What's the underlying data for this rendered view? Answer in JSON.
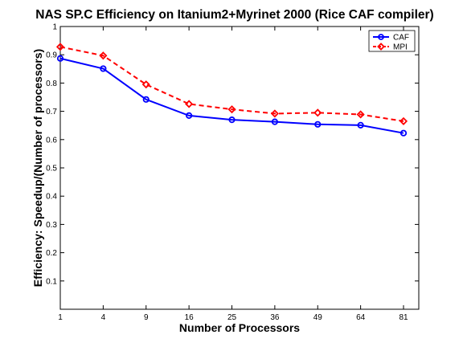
{
  "chart_data": {
    "type": "line",
    "title": "NAS SP.C Efficiency on Itanium2+Myrinet 2000 (Rice CAF compiler)",
    "xlabel": "Number of Processors",
    "ylabel": "Efficiency: Speedup/(Number of processors)",
    "x_scale": "sqrt",
    "x": [
      1,
      4,
      9,
      16,
      25,
      36,
      49,
      64,
      81
    ],
    "x_tick_labels": [
      "1",
      "4",
      "9",
      "16",
      "25",
      "36",
      "49",
      "64",
      "81"
    ],
    "ylim": [
      0,
      1
    ],
    "y_ticks": [
      0.1,
      0.2,
      0.3,
      0.4,
      0.5,
      0.6,
      0.7,
      0.8,
      0.9,
      1
    ],
    "y_tick_labels": [
      "0.1",
      "0.2",
      "0.3",
      "0.4",
      "0.5",
      "0.6",
      "0.7",
      "0.8",
      "0.9",
      "1"
    ],
    "grid": false,
    "legend_position": "top-right",
    "series": [
      {
        "name": "CAF",
        "color": "#0000ff",
        "line_style": "solid",
        "marker": "circle",
        "values": [
          0.887,
          0.851,
          0.742,
          0.685,
          0.67,
          0.663,
          0.654,
          0.651,
          0.623
        ]
      },
      {
        "name": "MPI",
        "color": "#ff0000",
        "line_style": "dashed",
        "marker": "diamond",
        "values": [
          0.928,
          0.897,
          0.795,
          0.726,
          0.707,
          0.692,
          0.695,
          0.689,
          0.665
        ]
      }
    ]
  }
}
